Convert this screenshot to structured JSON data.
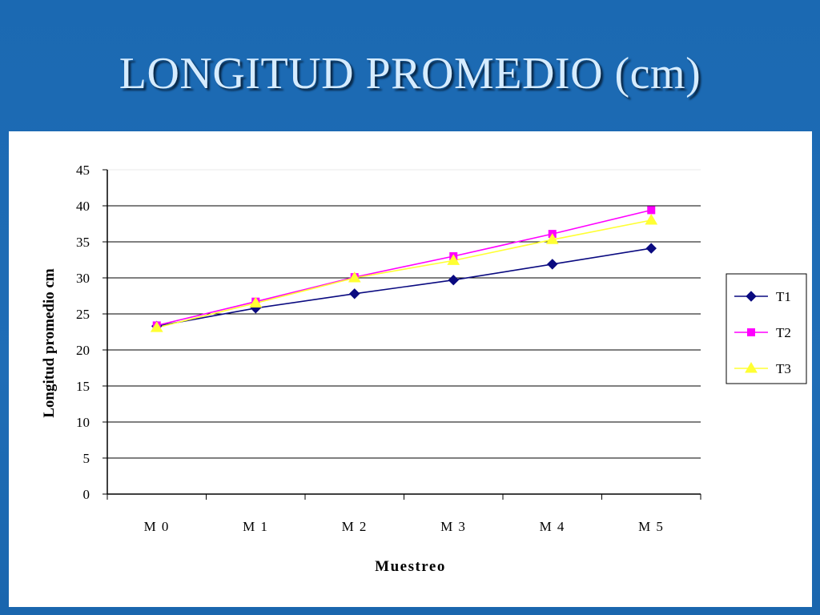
{
  "slide": {
    "title": "LONGITUD PROMEDIO (cm)"
  },
  "colors": {
    "background": "#1f6db4",
    "title": "#d6ecff",
    "T1": "#0a0a80",
    "T2": "#ff00ff",
    "T3": "#ffff33"
  },
  "chart_data": {
    "type": "line",
    "categories": [
      "M 0",
      "M 1",
      "M 2",
      "M 3",
      "M 4",
      "M 5"
    ],
    "series": [
      {
        "name": "T1",
        "marker": "diamond",
        "values": [
          23.3,
          25.8,
          27.8,
          29.7,
          31.9,
          34.1
        ]
      },
      {
        "name": "T2",
        "marker": "square",
        "values": [
          23.4,
          26.7,
          30.1,
          33.0,
          36.1,
          39.4
        ]
      },
      {
        "name": "T3",
        "marker": "triangle",
        "values": [
          23.1,
          26.5,
          30.0,
          32.4,
          35.3,
          38.0
        ]
      }
    ],
    "title": "",
    "xlabel": "Muestreo",
    "ylabel": "Longitud promedio cm",
    "ylim": [
      0,
      45
    ],
    "yticks": [
      "0",
      "5",
      "10",
      "15",
      "20",
      "25",
      "30",
      "35",
      "40",
      "45"
    ],
    "grid": "horizontal",
    "legend": "right"
  }
}
